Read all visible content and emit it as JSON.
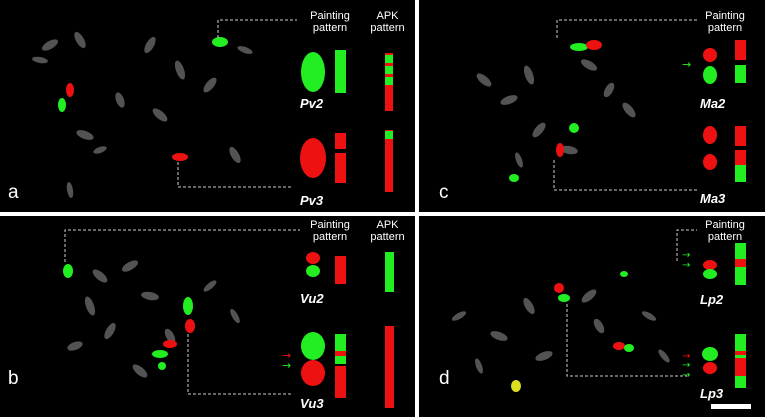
{
  "panels": {
    "a": {
      "letter": "a",
      "header1": "Painting\npattern",
      "header2": "APK\npattern",
      "chrom1": "Pv2",
      "chrom2": "Pv3"
    },
    "b": {
      "letter": "b",
      "header1": "Painting\npattern",
      "header2": "APK\npattern",
      "chrom1": "Vu2",
      "chrom2": "Vu3"
    },
    "c": {
      "letter": "c",
      "header1": "Painting\npattern",
      "chrom1": "Ma2",
      "chrom2": "Ma3"
    },
    "d": {
      "letter": "d",
      "header1": "Painting\npattern",
      "chrom1": "Lp2",
      "chrom2": "Lp3"
    }
  },
  "colors": {
    "green": "#22ee22",
    "red": "#ee1111",
    "gray": "#7a7a7a",
    "background": "#000000"
  }
}
